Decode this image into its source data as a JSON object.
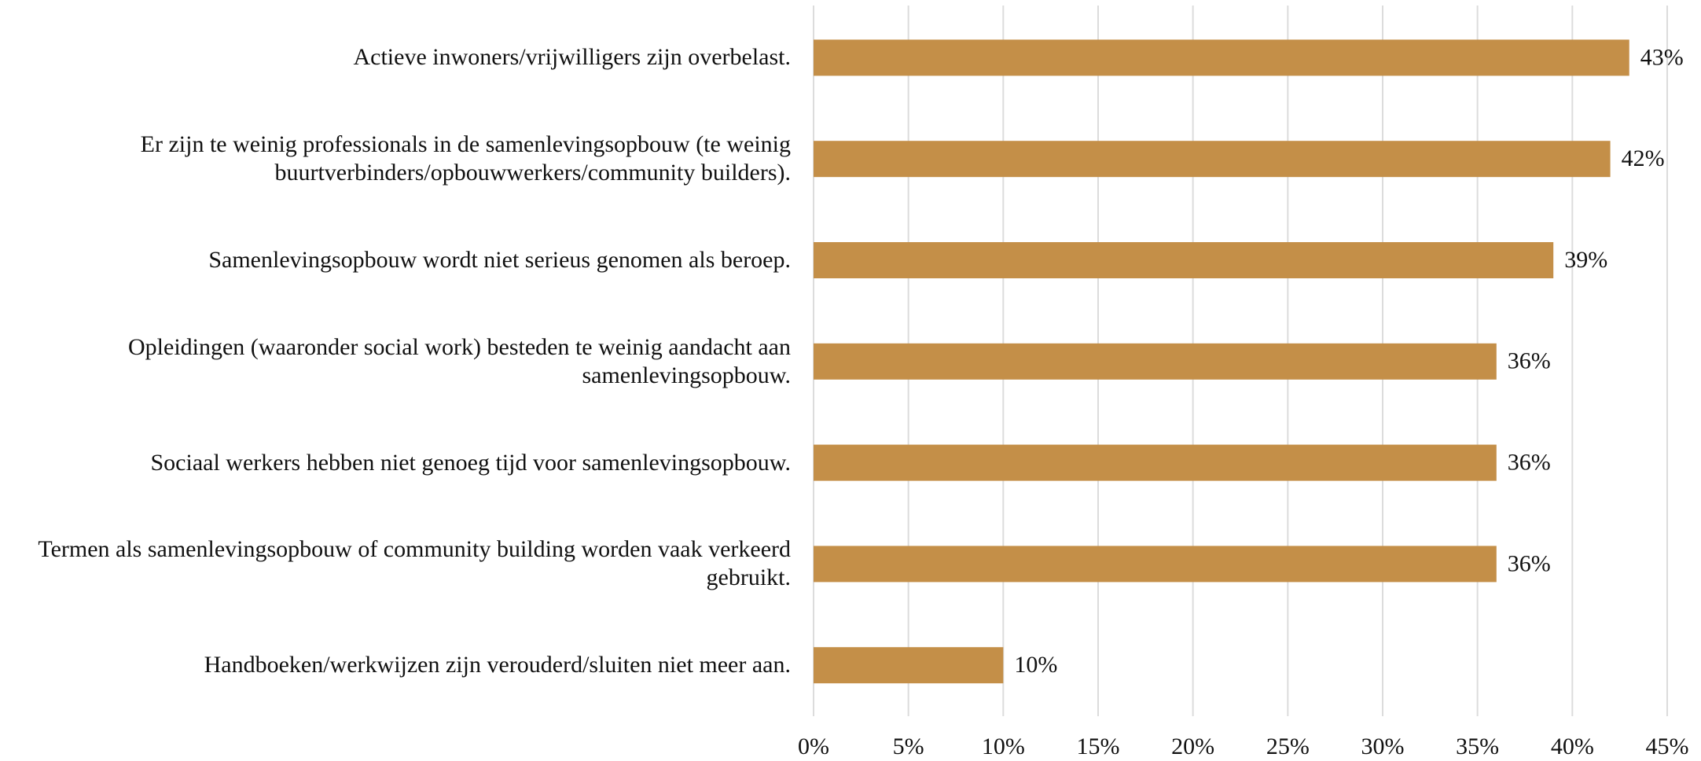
{
  "chart_data": {
    "type": "bar",
    "orientation": "horizontal",
    "categories": [
      "Actieve inwoners/vrijwilligers zijn overbelast.",
      "Er zijn te weinig professionals in de samenlevingsopbouw (te weinig buurtverbinders/opbouwwerkers/community builders).",
      "Samenlevingsopbouw wordt niet serieus genomen als beroep.",
      "Opleidingen (waaronder social work) besteden te weinig aandacht aan samenlevingsopbouw.",
      "Sociaal werkers hebben niet genoeg tijd voor samenlevingsopbouw.",
      "Termen als samenlevingsopbouw of community building worden vaak verkeerd gebruikt.",
      "Handboeken/werkwijzen zijn verouderd/sluiten niet meer aan."
    ],
    "values": [
      43,
      42,
      39,
      36,
      36,
      36,
      10
    ],
    "value_labels": [
      "43%",
      "42%",
      "39%",
      "36%",
      "36%",
      "36%",
      "10%"
    ],
    "color": "#c48f48",
    "xlim": [
      0,
      45
    ],
    "xticks": [
      {
        "value": 0,
        "label": "0%"
      },
      {
        "value": 5,
        "label": "5%"
      },
      {
        "value": 10,
        "label": "10%"
      },
      {
        "value": 15,
        "label": "15%"
      },
      {
        "value": 20,
        "label": "20%"
      },
      {
        "value": 25,
        "label": "25%"
      },
      {
        "value": 30,
        "label": "30%"
      },
      {
        "value": 35,
        "label": "35%"
      },
      {
        "value": 40,
        "label": "40%"
      },
      {
        "value": 45,
        "label": "45%"
      }
    ],
    "grid": true
  }
}
